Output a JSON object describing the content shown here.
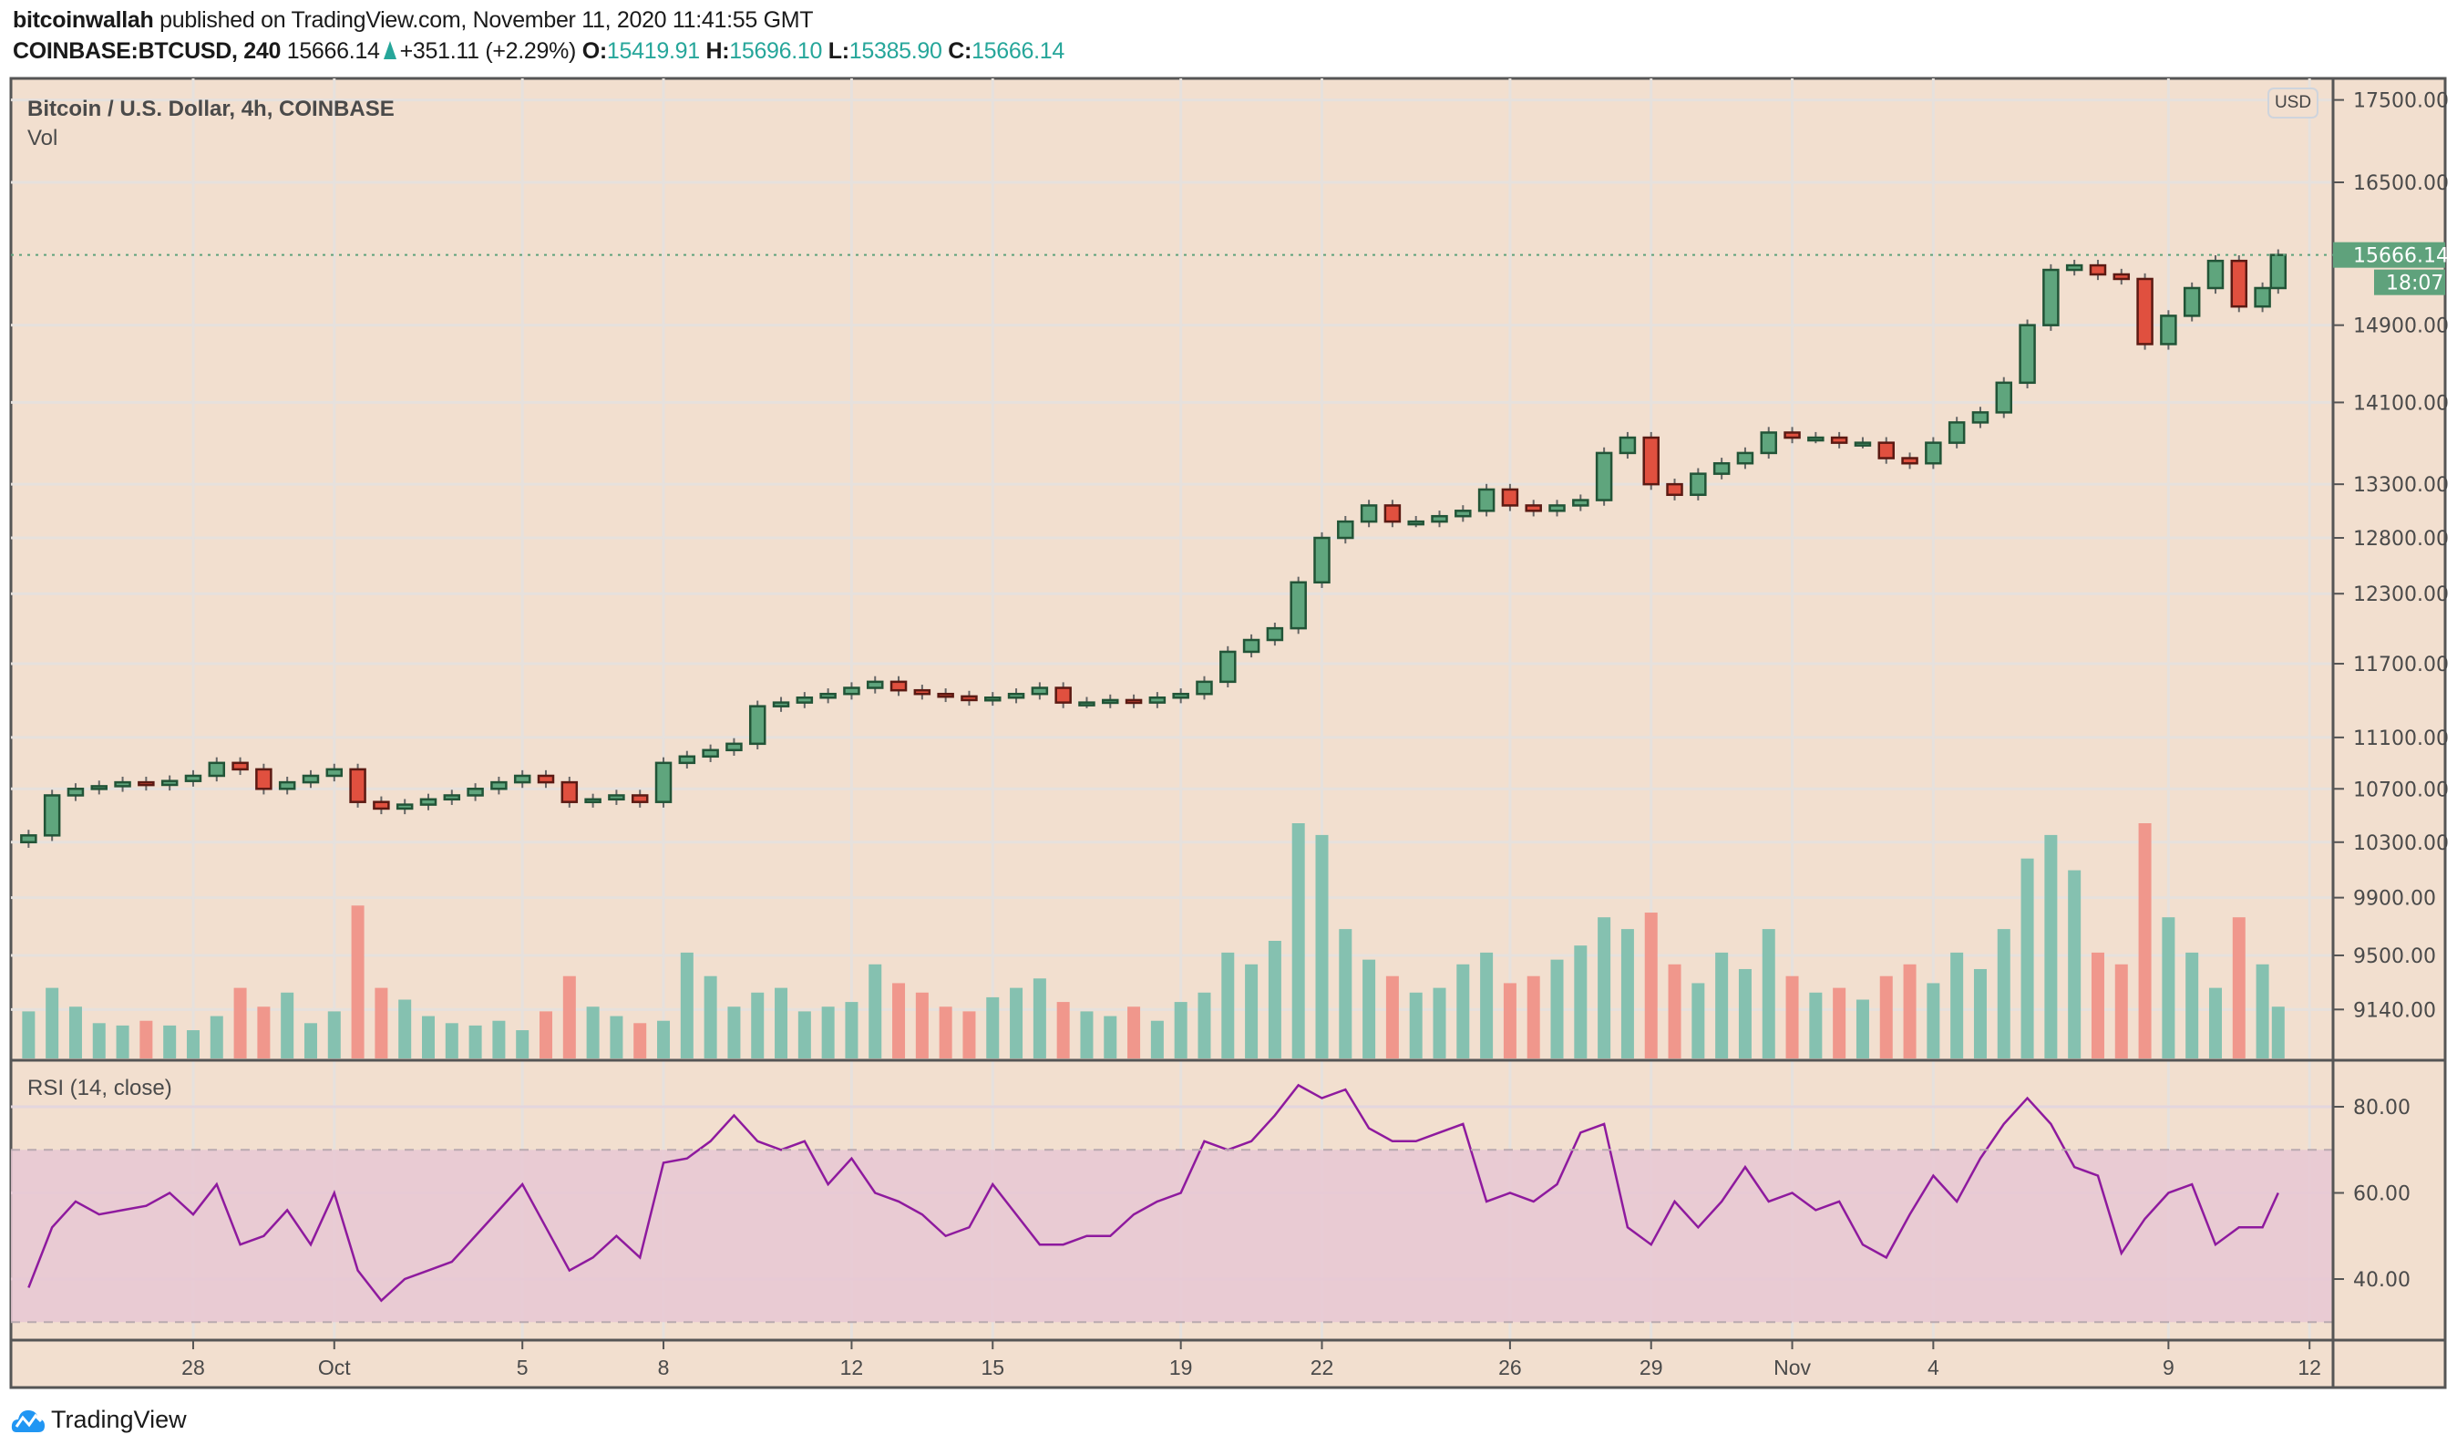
{
  "header": {
    "author": "bitcoinwallah",
    "published": "published on TradingView.com, November 11, 2020 11:41:55 GMT",
    "symbol": "COINBASE:BTCUSD, 240",
    "last": "15666.14",
    "change": "+351.11 (+2.29%)",
    "o_label": "O:",
    "o": "15419.91",
    "h_label": "H:",
    "h": "15696.10",
    "l_label": "L:",
    "l": "15385.90",
    "c_label": "C:",
    "c": "15666.14"
  },
  "legend": {
    "title": "Bitcoin / U.S. Dollar, 4h, COINBASE",
    "volume": "Vol",
    "rsi": "RSI (14, close)"
  },
  "currency_badge": "USD",
  "last_price_label": "15666.14",
  "countdown": "18:07",
  "logo": "TradingView",
  "colors": {
    "background": "#f2dfcf",
    "up": "#5fa57d",
    "down": "#e0503f",
    "volume_up": "#85c1b0",
    "volume_down": "#f0978c",
    "rsi_line": "#8e1a9e",
    "rsi_band": "#e8c8d3",
    "last_price": "#5fa27c"
  },
  "chart_data": [
    {
      "type": "candlestick",
      "title": "Bitcoin / U.S. Dollar, 4h, COINBASE",
      "y_scale": "log",
      "yticks": [
        "17500.00",
        "16500.00",
        "14900.00",
        "14100.00",
        "13300.00",
        "12800.00",
        "12300.00",
        "11700.00",
        "11100.00",
        "10700.00",
        "10300.00",
        "9900.00",
        "9500.00",
        "9140.00"
      ],
      "xticks": [
        {
          "label": "28",
          "date": "2020-09-28"
        },
        {
          "label": "Oct",
          "date": "2020-10-01"
        },
        {
          "label": "5",
          "date": "2020-10-05"
        },
        {
          "label": "8",
          "date": "2020-10-08"
        },
        {
          "label": "12",
          "date": "2020-10-12"
        },
        {
          "label": "15",
          "date": "2020-10-15"
        },
        {
          "label": "19",
          "date": "2020-10-19"
        },
        {
          "label": "22",
          "date": "2020-10-22"
        },
        {
          "label": "26",
          "date": "2020-10-26"
        },
        {
          "label": "29",
          "date": "2020-10-29"
        },
        {
          "label": "Nov",
          "date": "2020-11-01"
        },
        {
          "label": "4",
          "date": "2020-11-04"
        },
        {
          "label": "9",
          "date": "2020-11-09"
        },
        {
          "label": "12",
          "date": "2020-11-12"
        }
      ],
      "x_range": [
        "2020-09-24T03:00",
        "2020-11-12T12:00"
      ],
      "grid": true,
      "first_open": 10300,
      "times": [
        "2020-09-24T12:00",
        "2020-11-11T08:00"
      ],
      "close": [
        10350,
        10650,
        10700,
        10720,
        10750,
        10730,
        10760,
        10800,
        10900,
        10850,
        10700,
        10750,
        10800,
        10850,
        10600,
        10550,
        10580,
        10620,
        10650,
        10700,
        10750,
        10800,
        10750,
        10600,
        10620,
        10650,
        10600,
        10900,
        10950,
        11000,
        11050,
        11350,
        11380,
        11420,
        11450,
        11500,
        11550,
        11480,
        11450,
        11430,
        11400,
        11420,
        11450,
        11500,
        11380,
        11380,
        11400,
        11380,
        11420,
        11450,
        11550,
        11800,
        11900,
        12000,
        12400,
        12800,
        12950,
        13100,
        12950,
        12950,
        13000,
        13050,
        13250,
        13100,
        13050,
        13100,
        13150,
        13600,
        13750,
        13300,
        13200,
        13400,
        13500,
        13600,
        13800,
        13750,
        13750,
        13700,
        13700,
        13550,
        13500,
        13700,
        13900,
        14000,
        14300,
        14900,
        15500,
        15550,
        15450,
        15400,
        14700,
        15000,
        15300,
        15600,
        15100,
        15300,
        15666.14
      ],
      "volume": [
        20,
        30,
        22,
        15,
        14,
        16,
        14,
        12,
        18,
        30,
        22,
        28,
        15,
        20,
        65,
        30,
        25,
        18,
        15,
        14,
        16,
        12,
        20,
        35,
        22,
        18,
        15,
        16,
        45,
        35,
        22,
        28,
        30,
        20,
        22,
        24,
        40,
        32,
        28,
        22,
        20,
        26,
        30,
        34,
        24,
        20,
        18,
        22,
        16,
        24,
        28,
        45,
        40,
        50,
        100,
        95,
        55,
        42,
        35,
        28,
        30,
        40,
        45,
        32,
        35,
        42,
        48,
        60,
        55,
        62,
        40,
        32,
        45,
        38,
        55,
        35,
        28,
        30,
        25,
        35,
        40,
        32,
        45,
        38,
        55,
        85,
        95,
        80,
        45,
        40,
        100,
        60,
        45,
        30,
        60,
        40,
        22
      ],
      "volume_scale_max": 100,
      "rsi": {
        "name": "RSI (14, close)",
        "yticks": [
          "80.00",
          "60.00",
          "40.00"
        ],
        "band": [
          30,
          70
        ],
        "values": [
          38,
          52,
          58,
          55,
          56,
          57,
          60,
          55,
          62,
          48,
          50,
          56,
          48,
          60,
          42,
          35,
          40,
          42,
          44,
          50,
          56,
          62,
          52,
          42,
          45,
          50,
          45,
          67,
          68,
          72,
          78,
          72,
          70,
          72,
          62,
          68,
          60,
          58,
          55,
          50,
          52,
          62,
          55,
          48,
          48,
          50,
          50,
          55,
          58,
          60,
          72,
          70,
          72,
          78,
          85,
          82,
          84,
          75,
          72,
          72,
          74,
          76,
          58,
          60,
          58,
          62,
          74,
          76,
          52,
          48,
          58,
          52,
          58,
          66,
          58,
          60,
          56,
          58,
          48,
          45,
          55,
          64,
          58,
          68,
          76,
          82,
          76,
          66,
          64,
          46,
          54,
          60,
          62,
          48,
          52,
          52,
          60
        ]
      }
    }
  ]
}
